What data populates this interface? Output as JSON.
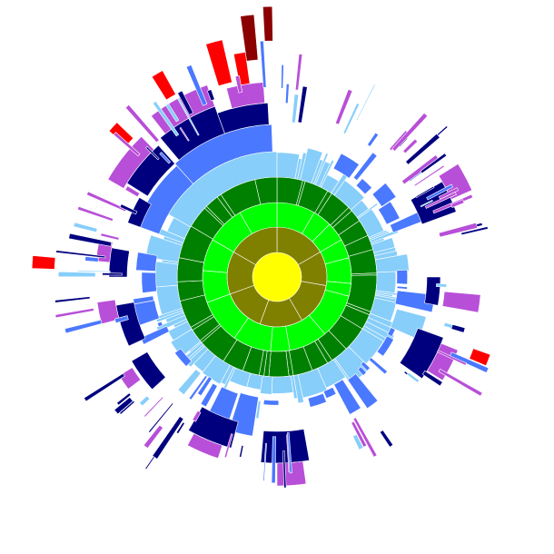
{
  "diagram": {
    "type": "sunburst",
    "title": "",
    "level_colors": [
      "#ffff00",
      "#808000",
      "#00ff00",
      "#008000",
      "#87cefa",
      "#4a78ff",
      "#00007f",
      "#b84fd8",
      "#ff0000",
      "#8b0000"
    ],
    "accent_colors": {
      "dark_green": "#008000",
      "light_blue": "#87cefa",
      "cornflower": "#4a78ff"
    },
    "root": {
      "label": "",
      "value": 1
    }
  }
}
